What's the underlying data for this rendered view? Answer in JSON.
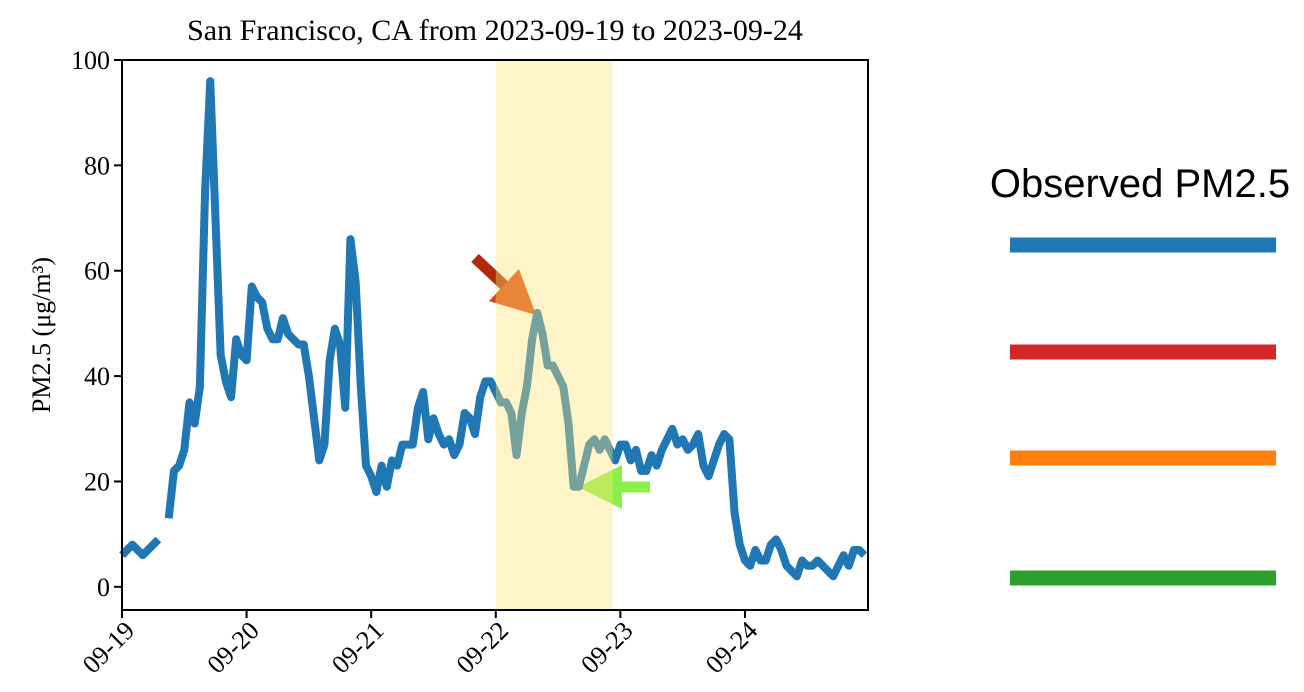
{
  "chart_data": {
    "type": "line",
    "title": "San Francisco, CA from 2023-09-19 to 2023-09-24",
    "ylabel": "PM2.5 (μg/m³)",
    "x": [
      0,
      1,
      2,
      3,
      4,
      5,
      6,
      7,
      8,
      9,
      10,
      11,
      12,
      13,
      14,
      15,
      16,
      17,
      18,
      19,
      20,
      21,
      22,
      23,
      24,
      25,
      26,
      27,
      28,
      29,
      30,
      31,
      32,
      33,
      34,
      35,
      36,
      37,
      38,
      39,
      40,
      41,
      42,
      43,
      44,
      45,
      46,
      47,
      48,
      49,
      50,
      51,
      52,
      53,
      54,
      55,
      56,
      57,
      58,
      59,
      60,
      61,
      62,
      63,
      64,
      65,
      66,
      67,
      68,
      69,
      70,
      71,
      72,
      73,
      74,
      75,
      76,
      77,
      78,
      79,
      80,
      81,
      82,
      83,
      84,
      85,
      86,
      87,
      88,
      89,
      90,
      91,
      92,
      93,
      94,
      95,
      96,
      97,
      98,
      99,
      100,
      101,
      102,
      103,
      104,
      105,
      106,
      107,
      108,
      109,
      110,
      111,
      112,
      113,
      114,
      115,
      116,
      117,
      118,
      119,
      120,
      121,
      122,
      123,
      124,
      125,
      126,
      127,
      128,
      129,
      130,
      131,
      132,
      133,
      134,
      135,
      136,
      137,
      138,
      139,
      140,
      141,
      142,
      143
    ],
    "series": [
      {
        "name": "Observed PM2.5",
        "color": "#1f77b4",
        "values": [
          6,
          7,
          8,
          7,
          6,
          7,
          8,
          9,
          null,
          13,
          22,
          23,
          26,
          35,
          31,
          38,
          75,
          96,
          70,
          44,
          39,
          36,
          47,
          44,
          43,
          57,
          55,
          54,
          49,
          47,
          47,
          51,
          48,
          47,
          46,
          46,
          40,
          32,
          24,
          27,
          43,
          49,
          46,
          34,
          66,
          58,
          38,
          23,
          21,
          18,
          23,
          19,
          24,
          23,
          27,
          27,
          27,
          34,
          37,
          28,
          32,
          29,
          27,
          28,
          25,
          27,
          33,
          32,
          29,
          36,
          39,
          39,
          37,
          35,
          35,
          33,
          25,
          33,
          38,
          47,
          52,
          48,
          42,
          42,
          40,
          38,
          31,
          19,
          19,
          23,
          27,
          28,
          26,
          28,
          26,
          24,
          27,
          27,
          24,
          26,
          22,
          22,
          25,
          23,
          26,
          28,
          30,
          27,
          28,
          26,
          27,
          29,
          23,
          21,
          24,
          27,
          29,
          28,
          14,
          8,
          5,
          4,
          7,
          5,
          5,
          8,
          9,
          7,
          4,
          3,
          2,
          5,
          4,
          4,
          5,
          4,
          3,
          2,
          4,
          6,
          4,
          7,
          7,
          6
        ]
      }
    ],
    "xlim": [
      0,
      143.7
    ],
    "xticks": [
      {
        "value": 0,
        "label": "09-19"
      },
      {
        "value": 24,
        "label": "09-20"
      },
      {
        "value": 48,
        "label": "09-21"
      },
      {
        "value": 72,
        "label": "09-22"
      },
      {
        "value": 96,
        "label": "09-23"
      },
      {
        "value": 120,
        "label": "09-24"
      }
    ],
    "ylim": [
      -4.4,
      100
    ],
    "yticks": [
      0,
      20,
      40,
      60,
      80,
      100
    ],
    "highlight": [
      72,
      94.5
    ],
    "legend": {
      "title": "Observed PM2.5",
      "colors": [
        "#1f77b4",
        "#d62728",
        "#ff7f0e",
        "#2ca02c"
      ]
    }
  }
}
